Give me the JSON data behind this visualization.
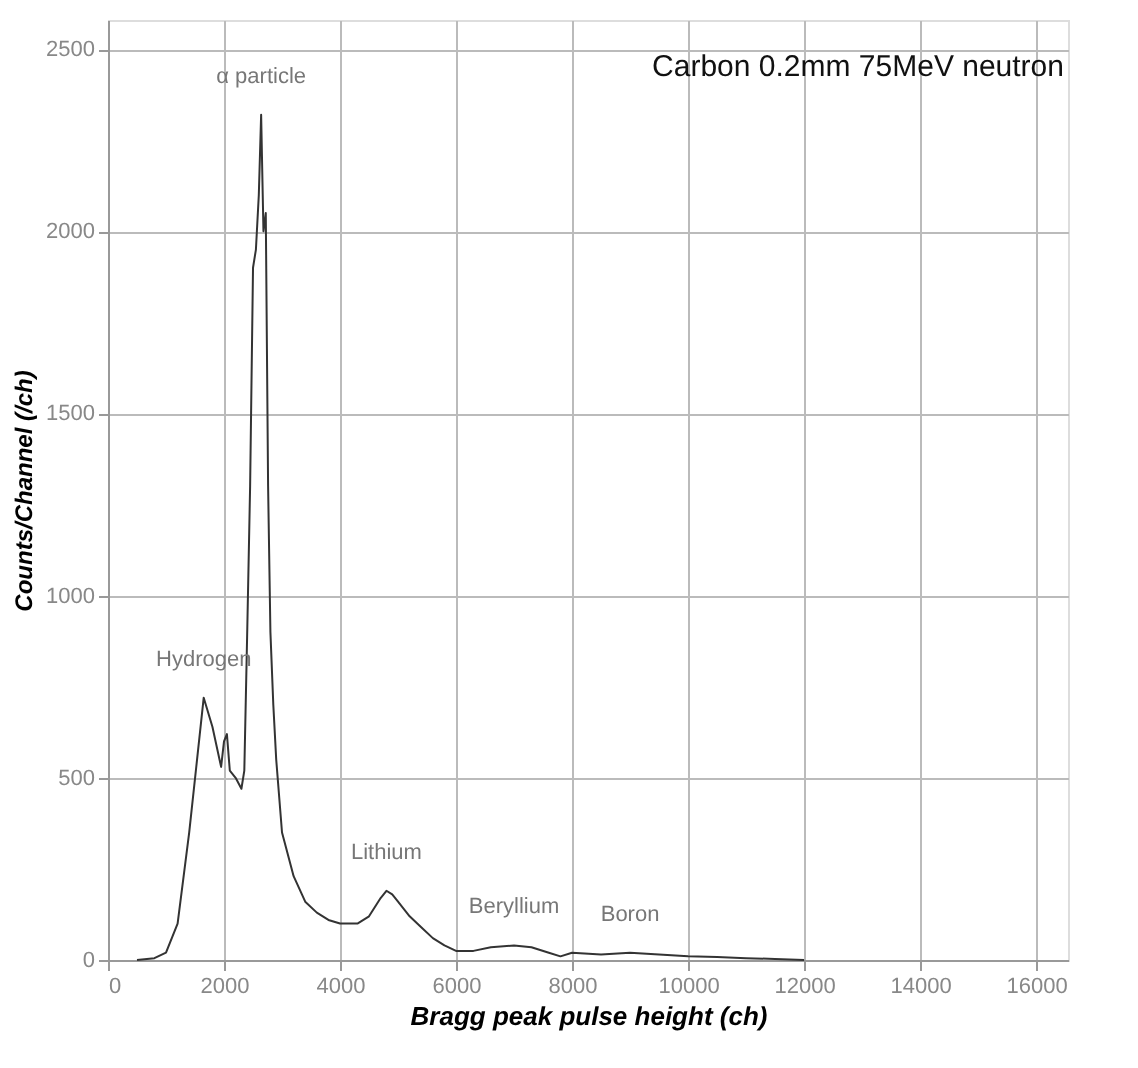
{
  "chart_data": {
    "type": "line",
    "title": "Carbon  0.2mm 75MeV neutron",
    "xlabel": "Bragg peak pulse height (ch)",
    "ylabel": "Counts/Channel (/ch)",
    "x": [
      500,
      800,
      1000,
      1200,
      1400,
      1650,
      1800,
      1950,
      2000,
      2050,
      2100,
      2200,
      2300,
      2350,
      2400,
      2450,
      2500,
      2550,
      2600,
      2640,
      2680,
      2720,
      2760,
      2800,
      2850,
      2900,
      3000,
      3200,
      3400,
      3600,
      3800,
      4000,
      4300,
      4500,
      4700,
      4800,
      4900,
      5000,
      5200,
      5400,
      5600,
      5800,
      6000,
      6300,
      6600,
      7000,
      7300,
      7600,
      7800,
      8000,
      8500,
      9000,
      9500,
      10000,
      10500,
      11000,
      11500,
      12000
    ],
    "series": [
      {
        "color": "#333333",
        "values": [
          0,
          5,
          20,
          100,
          350,
          720,
          640,
          530,
          600,
          620,
          520,
          500,
          470,
          520,
          900,
          1300,
          1900,
          1950,
          2100,
          2320,
          2000,
          2050,
          1300,
          900,
          700,
          550,
          350,
          230,
          160,
          130,
          110,
          100,
          100,
          120,
          170,
          190,
          180,
          160,
          120,
          90,
          60,
          40,
          25,
          25,
          35,
          40,
          35,
          20,
          10,
          20,
          15,
          20,
          15,
          10,
          8,
          5,
          3,
          0
        ]
      }
    ],
    "annotations": [
      {
        "text": "α particle",
        "x": 2640,
        "y": 2320
      },
      {
        "text": "Hydrogen",
        "x": 1650,
        "y": 720
      },
      {
        "text": "Lithium",
        "x": 4800,
        "y": 190
      },
      {
        "text": "Beryllium",
        "x": 7000,
        "y": 40
      },
      {
        "text": "Boron",
        "x": 9000,
        "y": 20
      }
    ],
    "xlim": [
      0,
      16550
    ],
    "ylim": [
      0,
      2580
    ],
    "xticks": [
      0,
      2000,
      4000,
      6000,
      8000,
      10000,
      12000,
      14000,
      16000
    ],
    "yticks": [
      0,
      500,
      1000,
      1500,
      2000,
      2500
    ],
    "grid": true,
    "line_style": "solid",
    "marker": "none"
  }
}
